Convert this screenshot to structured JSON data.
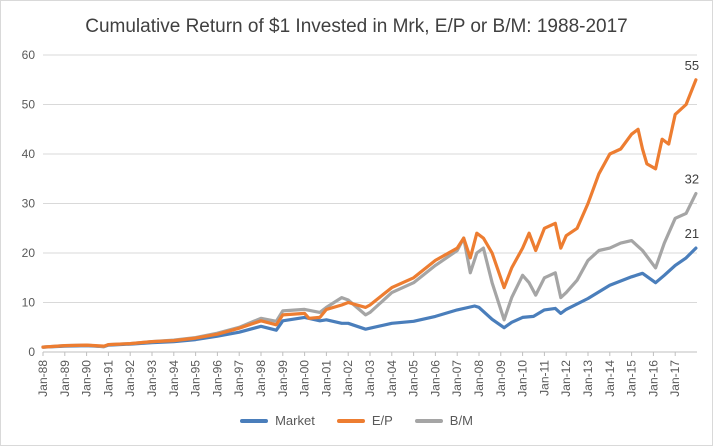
{
  "chart_data": {
    "type": "line",
    "title": "Cumulative Return of $1 Invested in Mrk, E/P or B/M: 1988-2017",
    "xlabel": "",
    "ylabel": "",
    "ylim": [
      0,
      60
    ],
    "yticks": [
      "0",
      "10",
      "20",
      "30",
      "40",
      "50",
      "60"
    ],
    "xticks": [
      "Jan-88",
      "Jan-89",
      "Jan-90",
      "Jan-91",
      "Jan-92",
      "Jan-93",
      "Jan-94",
      "Jan-95",
      "Jan-96",
      "Jan-97",
      "Jan-98",
      "Jan-99",
      "Jan-00",
      "Jan-01",
      "Jan-02",
      "Jan-03",
      "Jan-04",
      "Jan-05",
      "Jan-06",
      "Jan-07",
      "Jan-08",
      "Jan-09",
      "Jan-10",
      "Jan-11",
      "Jan-12",
      "Jan-13",
      "Jan-14",
      "Jan-15",
      "Jan-16",
      "Jan-17"
    ],
    "grid": true,
    "legend_position": "bottom",
    "x_unit": "year",
    "series": [
      {
        "name": "Market",
        "color": "#4a7ebb",
        "end_label": "21",
        "x": [
          1988,
          1989,
          1990,
          1990.8,
          1991,
          1992,
          1993,
          1994,
          1995,
          1996,
          1997,
          1998,
          1998.7,
          1999,
          2000,
          2000.7,
          2001,
          2001.7,
          2002,
          2002.8,
          2003,
          2004,
          2005,
          2006,
          2007,
          2007.8,
          2008,
          2008.6,
          2009.15,
          2009.5,
          2010,
          2010.5,
          2011,
          2011.5,
          2011.75,
          2012,
          2013,
          2014,
          2015,
          2015.5,
          2016.1,
          2016.5,
          2017,
          2017.5,
          2017.95
        ],
        "y": [
          1,
          1.2,
          1.3,
          1.1,
          1.4,
          1.6,
          1.9,
          2.1,
          2.5,
          3.2,
          4.0,
          5.2,
          4.4,
          6.3,
          7.0,
          6.3,
          6.5,
          5.8,
          5.8,
          4.6,
          4.8,
          5.8,
          6.2,
          7.2,
          8.5,
          9.3,
          9.0,
          6.6,
          4.9,
          6.0,
          7.0,
          7.2,
          8.5,
          8.8,
          7.8,
          8.6,
          10.8,
          13.5,
          15.2,
          15.9,
          14.0,
          15.5,
          17.5,
          19.0,
          21
        ]
      },
      {
        "name": "E/P",
        "color": "#ed7d31",
        "end_label": "55",
        "x": [
          1988,
          1989,
          1990,
          1990.8,
          1991,
          1992,
          1993,
          1994,
          1995,
          1996,
          1997,
          1998,
          1998.7,
          1999,
          2000,
          2000.2,
          2000.7,
          2001,
          2001.7,
          2002,
          2002.8,
          2003,
          2004,
          2005,
          2006,
          2007,
          2007.3,
          2007.6,
          2007.9,
          2008.2,
          2008.6,
          2009.15,
          2009.5,
          2010,
          2010.3,
          2010.6,
          2011,
          2011.5,
          2011.75,
          2012,
          2012.5,
          2013,
          2013.5,
          2014,
          2014.5,
          2015,
          2015.3,
          2015.5,
          2015.7,
          2016.1,
          2016.4,
          2016.7,
          2017,
          2017.5,
          2017.95
        ],
        "y": [
          1,
          1.3,
          1.4,
          1.2,
          1.5,
          1.7,
          2.1,
          2.3,
          2.8,
          3.6,
          4.8,
          6.3,
          5.5,
          7.5,
          7.8,
          6.8,
          7.0,
          8.6,
          9.5,
          10.0,
          9.0,
          9.5,
          13.0,
          15.0,
          18.5,
          21.0,
          23.0,
          19.0,
          24.0,
          23.0,
          20.0,
          13.0,
          17.0,
          21.0,
          24.0,
          20.5,
          25.0,
          26.0,
          21.0,
          23.5,
          25.0,
          30.0,
          36.0,
          40.0,
          41.0,
          44.0,
          45.0,
          41.0,
          38.0,
          37.0,
          43.0,
          42.0,
          48.0,
          50.0,
          55.0
        ]
      },
      {
        "name": "B/M",
        "color": "#a5a5a5",
        "end_label": "32",
        "x": [
          1988,
          1989,
          1990,
          1990.8,
          1991,
          1992,
          1993,
          1994,
          1995,
          1996,
          1997,
          1998,
          1998.7,
          1999,
          2000,
          2000.7,
          2001,
          2001.7,
          2002,
          2002.8,
          2003,
          2004,
          2005,
          2006,
          2007,
          2007.3,
          2007.6,
          2007.9,
          2008.2,
          2008.6,
          2009.15,
          2009.5,
          2010,
          2010.3,
          2010.6,
          2011,
          2011.5,
          2011.75,
          2012,
          2012.5,
          2013,
          2013.5,
          2014,
          2014.5,
          2015,
          2015.5,
          2016.1,
          2016.5,
          2017,
          2017.5,
          2017.95
        ],
        "y": [
          1,
          1.3,
          1.4,
          1.1,
          1.5,
          1.7,
          2.1,
          2.4,
          2.9,
          3.8,
          5.0,
          6.8,
          6.2,
          8.3,
          8.6,
          8.0,
          9.0,
          11.0,
          10.5,
          7.5,
          8.0,
          12.0,
          14.0,
          17.5,
          20.5,
          23.0,
          16.0,
          20.0,
          21.0,
          14.0,
          6.5,
          11.0,
          15.5,
          14.0,
          11.5,
          15.0,
          16.0,
          11.0,
          12.0,
          14.5,
          18.5,
          20.5,
          21.0,
          22.0,
          22.5,
          20.5,
          17.0,
          22.0,
          27.0,
          28.0,
          32.0
        ]
      }
    ]
  }
}
